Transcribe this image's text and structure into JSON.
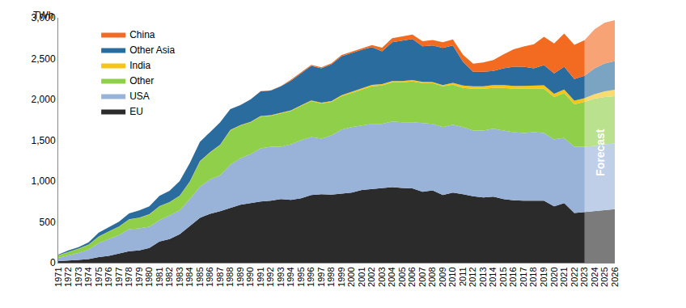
{
  "chart_data": {
    "type": "stacked_area",
    "stacked": true,
    "ylabel": "TWh",
    "x": [
      1971,
      1972,
      1973,
      1974,
      1975,
      1976,
      1977,
      1978,
      1979,
      1980,
      1981,
      1982,
      1983,
      1984,
      1985,
      1986,
      1987,
      1988,
      1989,
      1990,
      1991,
      1992,
      1993,
      1994,
      1995,
      1996,
      1997,
      1998,
      1999,
      2000,
      2001,
      2002,
      2003,
      2004,
      2005,
      2006,
      2007,
      2008,
      2009,
      2010,
      2011,
      2012,
      2013,
      2014,
      2015,
      2016,
      2017,
      2018,
      2019,
      2020,
      2021,
      2022,
      2023,
      2024,
      2025,
      2026
    ],
    "xlim": [
      1971,
      2026
    ],
    "xticks": [
      1971,
      1972,
      1973,
      1974,
      1975,
      1976,
      1977,
      1978,
      1979,
      1980,
      1981,
      1982,
      1983,
      1984,
      1985,
      1986,
      1987,
      1988,
      1989,
      1990,
      1991,
      1992,
      1993,
      1994,
      1995,
      1996,
      1997,
      1998,
      1999,
      2000,
      2001,
      2002,
      2003,
      2004,
      2005,
      2006,
      2007,
      2008,
      2009,
      2010,
      2011,
      2012,
      2013,
      2014,
      2015,
      2016,
      2017,
      2018,
      2019,
      2020,
      2021,
      2022,
      2023,
      2024,
      2025,
      2026
    ],
    "ylim": [
      0,
      3000
    ],
    "yticks": [
      0,
      500,
      {
        "value": 1000,
        "label": "1,000"
      },
      {
        "value": 1500,
        "label": "1,500"
      },
      {
        "value": 2000,
        "label": "2,000"
      },
      {
        "value": 2500,
        "label": "2,500"
      },
      {
        "value": 3000,
        "label": "3,000"
      }
    ],
    "grid": false,
    "legend": "top left",
    "annotations": [
      {
        "text": "Forecast",
        "x_start": 2023,
        "x_end": 2026
      }
    ],
    "series": [
      {
        "name": "EU",
        "color": "#2b2b2b",
        "values": [
          20,
          25,
          35,
          45,
          70,
          85,
          110,
          140,
          150,
          180,
          260,
          290,
          350,
          450,
          550,
          600,
          630,
          670,
          710,
          730,
          750,
          760,
          780,
          770,
          790,
          830,
          840,
          835,
          850,
          860,
          890,
          900,
          910,
          925,
          915,
          910,
          870,
          885,
          830,
          860,
          840,
          815,
          800,
          810,
          780,
          765,
          760,
          760,
          760,
          690,
          730,
          610,
          620,
          630,
          645,
          655
        ]
      },
      {
        "name": "USA",
        "color": "#98b2d8",
        "values": [
          40,
          65,
          85,
          115,
          170,
          205,
          230,
          270,
          270,
          260,
          260,
          290,
          290,
          330,
          380,
          420,
          440,
          530,
          570,
          600,
          650,
          660,
          640,
          680,
          710,
          710,
          680,
          725,
          780,
          800,
          790,
          800,
          790,
          805,
          805,
          810,
          840,
          815,
          830,
          830,
          820,
          805,
          820,
          830,
          840,
          835,
          830,
          840,
          830,
          820,
          800,
          810,
          800,
          800,
          805,
          805
        ]
      },
      {
        "name": "Other",
        "color": "#8fcf4a",
        "values": [
          30,
          40,
          50,
          60,
          80,
          90,
          100,
          120,
          130,
          150,
          170,
          160,
          180,
          210,
          310,
          330,
          370,
          420,
          400,
          390,
          390,
          380,
          410,
          410,
          420,
          440,
          430,
          410,
          410,
          420,
          440,
          460,
          470,
          480,
          490,
          500,
          490,
          500,
          500,
          490,
          480,
          510,
          510,
          500,
          520,
          530,
          540,
          530,
          540,
          520,
          550,
          520,
          550,
          580,
          580,
          580
        ]
      },
      {
        "name": "India",
        "color": "#f5c518",
        "values": [
          2,
          3,
          3,
          3,
          3,
          3,
          3,
          3,
          3,
          3,
          3,
          3,
          3,
          4,
          5,
          5,
          5,
          6,
          6,
          6,
          7,
          7,
          6,
          6,
          7,
          8,
          10,
          11,
          12,
          14,
          17,
          18,
          17,
          16,
          16,
          17,
          16,
          14,
          16,
          22,
          30,
          30,
          32,
          35,
          36,
          36,
          35,
          37,
          43,
          40,
          42,
          44,
          46,
          55,
          70,
          80
        ]
      },
      {
        "name": "Other Asia",
        "color": "#2b6c9e",
        "values": [
          8,
          17,
          17,
          27,
          47,
          50,
          60,
          70,
          87,
          97,
          127,
          137,
          177,
          226,
          235,
          245,
          275,
          254,
          244,
          274,
          303,
          303,
          324,
          364,
          393,
          422,
          420,
          449,
          478,
          476,
          473,
          462,
          403,
          474,
          494,
          503,
          434,
          446,
          454,
          458,
          290,
          180,
          178,
          175,
          204,
          234,
          235,
          213,
          247,
          250,
          278,
          266,
          274,
          315,
          340,
          350
        ]
      },
      {
        "name": "China",
        "color": "#f26b21",
        "values": [
          0,
          0,
          0,
          0,
          0,
          0,
          0,
          0,
          0,
          0,
          0,
          0,
          0,
          0,
          0,
          0,
          0,
          0,
          0,
          0,
          2,
          2,
          3,
          12,
          12,
          14,
          14,
          14,
          15,
          16,
          17,
          25,
          43,
          50,
          53,
          55,
          62,
          68,
          70,
          74,
          87,
          97,
          112,
          133,
          171,
          213,
          248,
          295,
          348,
          366,
          408,
          418,
          435,
          480,
          500,
          500
        ]
      }
    ]
  }
}
